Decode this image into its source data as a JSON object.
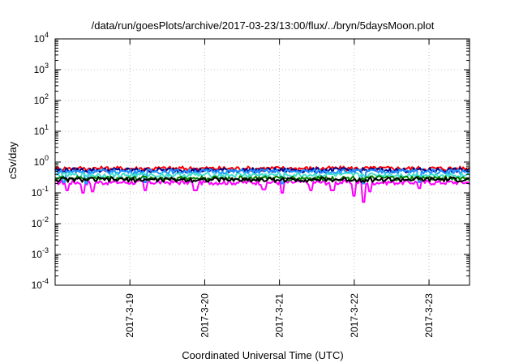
{
  "chart_data": {
    "type": "line",
    "title": "/data/run/goesPlots/archive/2017-03-23/13:00/flux/../bryn/5daysMoon.plot",
    "xlabel": "Coordinated Universal Time (UTC)",
    "ylabel": "cSv/day",
    "yscale": "log",
    "ylim": [
      0.0001,
      10000
    ],
    "xlim": [
      "2017-03-18T00:00",
      "2017-03-23T13:00"
    ],
    "grid": true,
    "legend": "none",
    "y_ticks": [
      {
        "base": "10",
        "exp": "4",
        "value": 10000
      },
      {
        "base": "10",
        "exp": "3",
        "value": 1000
      },
      {
        "base": "10",
        "exp": "2",
        "value": 100
      },
      {
        "base": "10",
        "exp": "1",
        "value": 10
      },
      {
        "base": "10",
        "exp": "0",
        "value": 1
      },
      {
        "base": "10",
        "exp": "-1",
        "value": 0.1
      },
      {
        "base": "10",
        "exp": "-2",
        "value": 0.01
      },
      {
        "base": "10",
        "exp": "-3",
        "value": 0.001
      },
      {
        "base": "10",
        "exp": "-4",
        "value": 0.0001
      }
    ],
    "x_ticks": [
      {
        "label": "2017-3-19",
        "date": "2017-03-19T00:00"
      },
      {
        "label": "2017-3-20",
        "date": "2017-03-20T00:00"
      },
      {
        "label": "2017-3-21",
        "date": "2017-03-21T00:00"
      },
      {
        "label": "2017-3-22",
        "date": "2017-03-22T00:00"
      },
      {
        "label": "2017-3-23",
        "date": "2017-03-23T00:00"
      }
    ],
    "series": [
      {
        "color": "#ff00ff",
        "baseline": 0.22,
        "dips": [
          {
            "date": "2017-03-18T04:00",
            "value": 0.12
          },
          {
            "date": "2017-03-18T09:00",
            "value": 0.1
          },
          {
            "date": "2017-03-18T12:00",
            "value": 0.11
          },
          {
            "date": "2017-03-19T05:00",
            "value": 0.12
          },
          {
            "date": "2017-03-19T21:00",
            "value": 0.12
          },
          {
            "date": "2017-03-20T19:00",
            "value": 0.13
          },
          {
            "date": "2017-03-21T01:00",
            "value": 0.1
          },
          {
            "date": "2017-03-21T10:00",
            "value": 0.12
          },
          {
            "date": "2017-03-21T17:00",
            "value": 0.12
          },
          {
            "date": "2017-03-22T00:00",
            "value": 0.08
          },
          {
            "date": "2017-03-22T03:00",
            "value": 0.05
          },
          {
            "date": "2017-03-22T05:00",
            "value": 0.11
          },
          {
            "date": "2017-03-22T21:00",
            "value": 0.14
          }
        ]
      },
      {
        "color": "#ff0000",
        "baseline": 0.62,
        "dips": []
      },
      {
        "color": "#00008b",
        "baseline": 0.55,
        "dips": []
      },
      {
        "color": "#1e90ff",
        "baseline": 0.5,
        "dips": [
          {
            "date": "2017-03-18T03:00",
            "value": 0.22
          },
          {
            "date": "2017-03-18T10:00",
            "value": 0.2
          },
          {
            "date": "2017-03-19T05:00",
            "value": 0.22
          },
          {
            "date": "2017-03-21T01:00",
            "value": 0.2
          },
          {
            "date": "2017-03-22T03:00",
            "value": 0.2
          },
          {
            "date": "2017-03-22T21:00",
            "value": 0.22
          }
        ]
      },
      {
        "color": "#40e0d0",
        "baseline": 0.38,
        "dips": []
      },
      {
        "color": "#008000",
        "baseline": 0.3,
        "dips": []
      },
      {
        "color": "#000000",
        "baseline": 0.27,
        "dips": []
      }
    ]
  }
}
